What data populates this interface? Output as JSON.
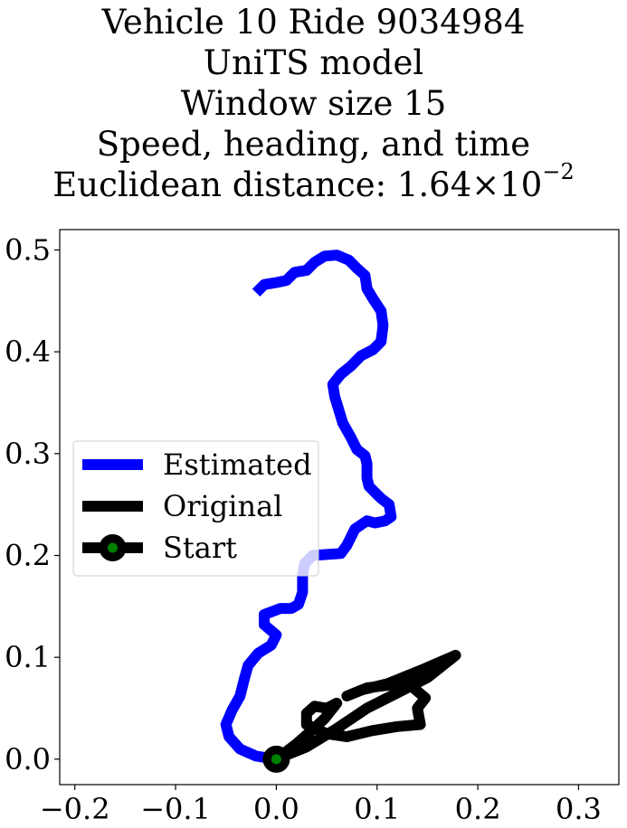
{
  "title_lines": {
    "line1": "Vehicle 10 Ride 9034984",
    "line2": "UniTS model",
    "line3": "Window size 15",
    "line4": "Speed, heading, and time",
    "line5_prefix": "Euclidean distance: 1.64×10",
    "line5_exp": "−2"
  },
  "chart_data": {
    "type": "line",
    "xlim": [
      -0.215,
      0.34
    ],
    "ylim": [
      -0.025,
      0.52
    ],
    "xticks": [
      -0.2,
      -0.1,
      0.0,
      0.1,
      0.2,
      0.3
    ],
    "xtick_labels": [
      "−0.2",
      "−0.1",
      "0.0",
      "0.1",
      "0.2",
      "0.3"
    ],
    "yticks": [
      0.0,
      0.1,
      0.2,
      0.3,
      0.4,
      0.5
    ],
    "ytick_labels": [
      "0.0",
      "0.1",
      "0.2",
      "0.3",
      "0.4",
      "0.5"
    ],
    "grid": false,
    "legend_position": "center-left",
    "series": [
      {
        "name": "Estimated",
        "color": "#0000ff",
        "points": [
          [
            0.0,
            0.0
          ],
          [
            -0.02,
            0.003
          ],
          [
            -0.036,
            0.01
          ],
          [
            -0.047,
            0.022
          ],
          [
            -0.05,
            0.034
          ],
          [
            -0.044,
            0.048
          ],
          [
            -0.036,
            0.062
          ],
          [
            -0.032,
            0.078
          ],
          [
            -0.028,
            0.092
          ],
          [
            -0.018,
            0.104
          ],
          [
            -0.005,
            0.112
          ],
          [
            0.0,
            0.122
          ],
          [
            -0.012,
            0.132
          ],
          [
            -0.012,
            0.142
          ],
          [
            0.004,
            0.148
          ],
          [
            0.015,
            0.148
          ],
          [
            0.022,
            0.152
          ],
          [
            0.026,
            0.164
          ],
          [
            0.026,
            0.18
          ],
          [
            0.028,
            0.192
          ],
          [
            0.036,
            0.2
          ],
          [
            0.05,
            0.201
          ],
          [
            0.064,
            0.202
          ],
          [
            0.07,
            0.21
          ],
          [
            0.078,
            0.226
          ],
          [
            0.09,
            0.234
          ],
          [
            0.098,
            0.232
          ],
          [
            0.108,
            0.234
          ],
          [
            0.114,
            0.238
          ],
          [
            0.112,
            0.25
          ],
          [
            0.104,
            0.256
          ],
          [
            0.098,
            0.262
          ],
          [
            0.092,
            0.268
          ],
          [
            0.09,
            0.276
          ],
          [
            0.09,
            0.29
          ],
          [
            0.088,
            0.298
          ],
          [
            0.08,
            0.304
          ],
          [
            0.074,
            0.316
          ],
          [
            0.066,
            0.33
          ],
          [
            0.062,
            0.343
          ],
          [
            0.058,
            0.356
          ],
          [
            0.056,
            0.368
          ],
          [
            0.064,
            0.378
          ],
          [
            0.074,
            0.386
          ],
          [
            0.084,
            0.396
          ],
          [
            0.096,
            0.402
          ],
          [
            0.104,
            0.41
          ],
          [
            0.106,
            0.426
          ],
          [
            0.104,
            0.44
          ],
          [
            0.096,
            0.452
          ],
          [
            0.09,
            0.462
          ],
          [
            0.088,
            0.475
          ],
          [
            0.08,
            0.482
          ],
          [
            0.072,
            0.49
          ],
          [
            0.06,
            0.495
          ],
          [
            0.048,
            0.494
          ],
          [
            0.038,
            0.488
          ],
          [
            0.03,
            0.48
          ],
          [
            0.018,
            0.478
          ],
          [
            0.01,
            0.47
          ],
          [
            0.0,
            0.468
          ],
          [
            -0.012,
            0.466
          ],
          [
            -0.02,
            0.458
          ]
        ]
      },
      {
        "name": "Original",
        "color": "#000000",
        "points": [
          [
            0.0,
            0.0
          ],
          [
            0.03,
            0.012
          ],
          [
            0.06,
            0.03
          ],
          [
            0.09,
            0.05
          ],
          [
            0.12,
            0.065
          ],
          [
            0.15,
            0.08
          ],
          [
            0.178,
            0.102
          ],
          [
            0.145,
            0.088
          ],
          [
            0.11,
            0.074
          ],
          [
            0.085,
            0.068
          ],
          [
            0.07,
            0.062
          ],
          [
            0.09,
            0.07
          ],
          [
            0.13,
            0.075
          ],
          [
            0.148,
            0.06
          ],
          [
            0.14,
            0.05
          ],
          [
            0.143,
            0.034
          ],
          [
            0.12,
            0.032
          ],
          [
            0.095,
            0.028
          ],
          [
            0.07,
            0.022
          ],
          [
            0.05,
            0.025
          ],
          [
            0.03,
            0.034
          ],
          [
            0.03,
            0.045
          ],
          [
            0.038,
            0.052
          ],
          [
            0.05,
            0.05
          ],
          [
            0.06,
            0.055
          ],
          [
            0.048,
            0.04
          ],
          [
            0.035,
            0.028
          ],
          [
            0.02,
            0.015
          ],
          [
            0.008,
            0.006
          ],
          [
            0.0,
            0.0
          ]
        ]
      },
      {
        "name": "Start",
        "color": "#000000",
        "marker_color": "#008000",
        "points": [
          [
            0.0,
            0.0
          ]
        ]
      }
    ]
  }
}
